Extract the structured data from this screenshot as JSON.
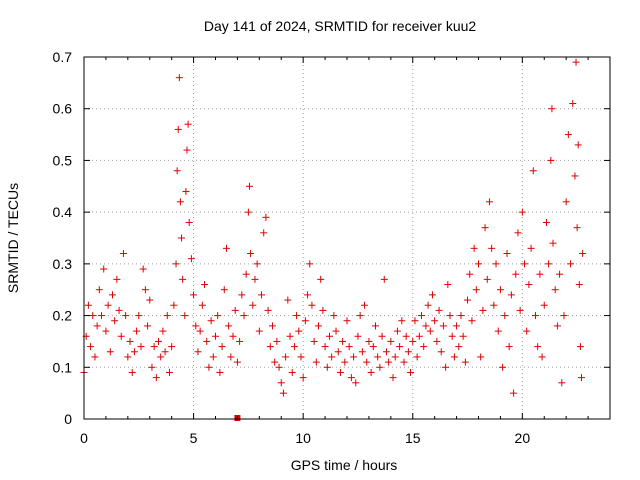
{
  "chart_data": {
    "type": "scatter",
    "title": "Day 141 of 2024, SRMTID for receiver kuu2",
    "xlabel": "GPS time / hours",
    "ylabel": "SRMTID / TECUs",
    "xlim": [
      0,
      24
    ],
    "ylim": [
      0,
      0.7
    ],
    "x_ticks": [
      0,
      5,
      10,
      15,
      20
    ],
    "y_ticks": [
      0,
      0.1,
      0.2,
      0.3,
      0.4,
      0.5,
      0.6,
      0.7
    ],
    "x_tick_labels": [
      "0",
      "5",
      "10",
      "15",
      "20"
    ],
    "y_tick_labels": [
      "0",
      "0.1",
      "0.2",
      "0.3",
      "0.4",
      "0.5",
      "0.6",
      "0.7"
    ],
    "grid": true,
    "marker": "+",
    "color": "#e00000",
    "series": [
      {
        "name": "SRMTID",
        "points": [
          [
            0.0,
            0.09
          ],
          [
            0.1,
            0.16
          ],
          [
            0.2,
            0.22
          ],
          [
            0.3,
            0.14
          ],
          [
            0.4,
            0.2
          ],
          [
            0.5,
            0.12
          ],
          [
            0.6,
            0.18
          ],
          [
            0.7,
            0.25
          ],
          [
            0.8,
            0.2
          ],
          [
            0.9,
            0.29
          ],
          [
            1.0,
            0.17
          ],
          [
            1.1,
            0.22
          ],
          [
            1.2,
            0.13
          ],
          [
            1.3,
            0.24
          ],
          [
            1.4,
            0.19
          ],
          [
            1.5,
            0.27
          ],
          [
            1.6,
            0.21
          ],
          [
            1.7,
            0.16
          ],
          [
            1.8,
            0.32
          ],
          [
            1.9,
            0.2
          ],
          [
            2.0,
            0.12
          ],
          [
            2.1,
            0.15
          ],
          [
            2.2,
            0.09
          ],
          [
            2.3,
            0.13
          ],
          [
            2.4,
            0.17
          ],
          [
            2.5,
            0.2
          ],
          [
            2.6,
            0.14
          ],
          [
            2.7,
            0.29
          ],
          [
            2.8,
            0.25
          ],
          [
            2.9,
            0.18
          ],
          [
            3.0,
            0.23
          ],
          [
            3.1,
            0.1
          ],
          [
            3.2,
            0.14
          ],
          [
            3.3,
            0.08
          ],
          [
            3.4,
            0.15
          ],
          [
            3.5,
            0.12
          ],
          [
            3.6,
            0.17
          ],
          [
            3.7,
            0.13
          ],
          [
            3.8,
            0.2
          ],
          [
            3.9,
            0.09
          ],
          [
            4.0,
            0.14
          ],
          [
            4.1,
            0.22
          ],
          [
            4.2,
            0.3
          ],
          [
            4.25,
            0.48
          ],
          [
            4.3,
            0.56
          ],
          [
            4.35,
            0.66
          ],
          [
            4.4,
            0.42
          ],
          [
            4.45,
            0.35
          ],
          [
            4.5,
            0.27
          ],
          [
            4.6,
            0.2
          ],
          [
            4.65,
            0.44
          ],
          [
            4.7,
            0.52
          ],
          [
            4.75,
            0.57
          ],
          [
            4.8,
            0.38
          ],
          [
            4.9,
            0.31
          ],
          [
            5.0,
            0.24
          ],
          [
            5.1,
            0.18
          ],
          [
            5.2,
            0.13
          ],
          [
            5.3,
            0.17
          ],
          [
            5.4,
            0.22
          ],
          [
            5.5,
            0.26
          ],
          [
            5.6,
            0.15
          ],
          [
            5.7,
            0.1
          ],
          [
            5.8,
            0.19
          ],
          [
            5.9,
            0.12
          ],
          [
            6.0,
            0.16
          ],
          [
            6.1,
            0.2
          ],
          [
            6.2,
            0.09
          ],
          [
            6.3,
            0.14
          ],
          [
            6.4,
            0.25
          ],
          [
            6.5,
            0.33
          ],
          [
            6.6,
            0.18
          ],
          [
            6.7,
            0.12
          ],
          [
            6.8,
            0.16
          ],
          [
            6.9,
            0.21
          ],
          [
            7.0,
            0.11
          ],
          [
            7.1,
            0.15
          ],
          [
            7.2,
            0.24
          ],
          [
            7.3,
            0.2
          ],
          [
            7.4,
            0.28
          ],
          [
            7.5,
            0.4
          ],
          [
            7.55,
            0.45
          ],
          [
            7.6,
            0.32
          ],
          [
            7.7,
            0.22
          ],
          [
            7.8,
            0.27
          ],
          [
            7.9,
            0.3
          ],
          [
            8.0,
            0.17
          ],
          [
            8.1,
            0.24
          ],
          [
            8.2,
            0.36
          ],
          [
            8.3,
            0.39
          ],
          [
            8.4,
            0.21
          ],
          [
            8.5,
            0.14
          ],
          [
            8.6,
            0.18
          ],
          [
            8.7,
            0.11
          ],
          [
            8.8,
            0.15
          ],
          [
            8.9,
            0.1
          ],
          [
            9.0,
            0.07
          ],
          [
            9.1,
            0.05
          ],
          [
            9.2,
            0.12
          ],
          [
            9.3,
            0.23
          ],
          [
            9.4,
            0.16
          ],
          [
            9.5,
            0.09
          ],
          [
            9.6,
            0.14
          ],
          [
            9.7,
            0.2
          ],
          [
            9.8,
            0.17
          ],
          [
            9.9,
            0.12
          ],
          [
            10.0,
            0.08
          ],
          [
            10.1,
            0.19
          ],
          [
            10.2,
            0.24
          ],
          [
            10.3,
            0.3
          ],
          [
            10.4,
            0.22
          ],
          [
            10.5,
            0.15
          ],
          [
            10.6,
            0.11
          ],
          [
            10.7,
            0.18
          ],
          [
            10.8,
            0.27
          ],
          [
            10.9,
            0.21
          ],
          [
            11.0,
            0.14
          ],
          [
            11.1,
            0.1
          ],
          [
            11.2,
            0.16
          ],
          [
            11.3,
            0.12
          ],
          [
            11.4,
            0.2
          ],
          [
            11.5,
            0.17
          ],
          [
            11.6,
            0.13
          ],
          [
            11.7,
            0.09
          ],
          [
            11.8,
            0.15
          ],
          [
            11.9,
            0.11
          ],
          [
            12.0,
            0.19
          ],
          [
            12.1,
            0.14
          ],
          [
            12.2,
            0.08
          ],
          [
            12.3,
            0.12
          ],
          [
            12.4,
            0.07
          ],
          [
            12.5,
            0.16
          ],
          [
            12.6,
            0.2
          ],
          [
            12.7,
            0.13
          ],
          [
            12.8,
            0.22
          ],
          [
            12.9,
            0.11
          ],
          [
            13.0,
            0.15
          ],
          [
            13.1,
            0.09
          ],
          [
            13.2,
            0.14
          ],
          [
            13.3,
            0.18
          ],
          [
            13.4,
            0.12
          ],
          [
            13.5,
            0.1
          ],
          [
            13.6,
            0.16
          ],
          [
            13.7,
            0.27
          ],
          [
            13.8,
            0.13
          ],
          [
            13.9,
            0.11
          ],
          [
            14.0,
            0.15
          ],
          [
            14.1,
            0.08
          ],
          [
            14.2,
            0.12
          ],
          [
            14.3,
            0.17
          ],
          [
            14.4,
            0.14
          ],
          [
            14.5,
            0.19
          ],
          [
            14.6,
            0.11
          ],
          [
            14.7,
            0.16
          ],
          [
            14.8,
            0.13
          ],
          [
            14.9,
            0.09
          ],
          [
            15.0,
            0.15
          ],
          [
            15.1,
            0.19
          ],
          [
            15.2,
            0.12
          ],
          [
            15.3,
            0.16
          ],
          [
            15.4,
            0.2
          ],
          [
            15.5,
            0.14
          ],
          [
            15.6,
            0.18
          ],
          [
            15.7,
            0.22
          ],
          [
            15.8,
            0.17
          ],
          [
            15.9,
            0.24
          ],
          [
            16.0,
            0.19
          ],
          [
            16.1,
            0.15
          ],
          [
            16.2,
            0.21
          ],
          [
            16.3,
            0.13
          ],
          [
            16.4,
            0.18
          ],
          [
            16.5,
            0.1
          ],
          [
            16.6,
            0.26
          ],
          [
            16.7,
            0.2
          ],
          [
            16.8,
            0.16
          ],
          [
            16.9,
            0.12
          ],
          [
            17.0,
            0.18
          ],
          [
            17.1,
            0.14
          ],
          [
            17.2,
            0.2
          ],
          [
            17.3,
            0.16
          ],
          [
            17.4,
            0.11
          ],
          [
            17.5,
            0.23
          ],
          [
            17.6,
            0.28
          ],
          [
            17.7,
            0.19
          ],
          [
            17.8,
            0.33
          ],
          [
            17.9,
            0.25
          ],
          [
            18.0,
            0.3
          ],
          [
            18.1,
            0.12
          ],
          [
            18.2,
            0.21
          ],
          [
            18.3,
            0.37
          ],
          [
            18.4,
            0.27
          ],
          [
            18.5,
            0.42
          ],
          [
            18.6,
            0.33
          ],
          [
            18.7,
            0.22
          ],
          [
            18.8,
            0.3
          ],
          [
            18.9,
            0.17
          ],
          [
            19.0,
            0.25
          ],
          [
            19.1,
            0.1
          ],
          [
            19.2,
            0.2
          ],
          [
            19.3,
            0.32
          ],
          [
            19.4,
            0.14
          ],
          [
            19.5,
            0.24
          ],
          [
            19.6,
            0.05
          ],
          [
            19.7,
            0.28
          ],
          [
            19.8,
            0.36
          ],
          [
            19.9,
            0.21
          ],
          [
            20.0,
            0.4
          ],
          [
            20.1,
            0.3
          ],
          [
            20.2,
            0.17
          ],
          [
            20.3,
            0.26
          ],
          [
            20.4,
            0.33
          ],
          [
            20.5,
            0.48
          ],
          [
            20.6,
            0.2
          ],
          [
            20.7,
            0.14
          ],
          [
            20.8,
            0.28
          ],
          [
            20.9,
            0.12
          ],
          [
            21.0,
            0.22
          ],
          [
            21.1,
            0.38
          ],
          [
            21.2,
            0.3
          ],
          [
            21.3,
            0.5
          ],
          [
            21.35,
            0.6
          ],
          [
            21.4,
            0.34
          ],
          [
            21.5,
            0.25
          ],
          [
            21.6,
            0.18
          ],
          [
            21.7,
            0.28
          ],
          [
            21.8,
            0.07
          ],
          [
            21.9,
            0.2
          ],
          [
            22.0,
            0.42
          ],
          [
            22.1,
            0.55
          ],
          [
            22.2,
            0.3
          ],
          [
            22.3,
            0.61
          ],
          [
            22.4,
            0.47
          ],
          [
            22.45,
            0.69
          ],
          [
            22.5,
            0.37
          ],
          [
            22.55,
            0.53
          ],
          [
            22.6,
            0.26
          ],
          [
            22.65,
            0.14
          ],
          [
            22.7,
            0.08
          ],
          [
            22.75,
            0.32
          ]
        ]
      }
    ],
    "annotations": [
      {
        "x": 7.0,
        "y": 0.0,
        "marker": "square"
      }
    ]
  }
}
